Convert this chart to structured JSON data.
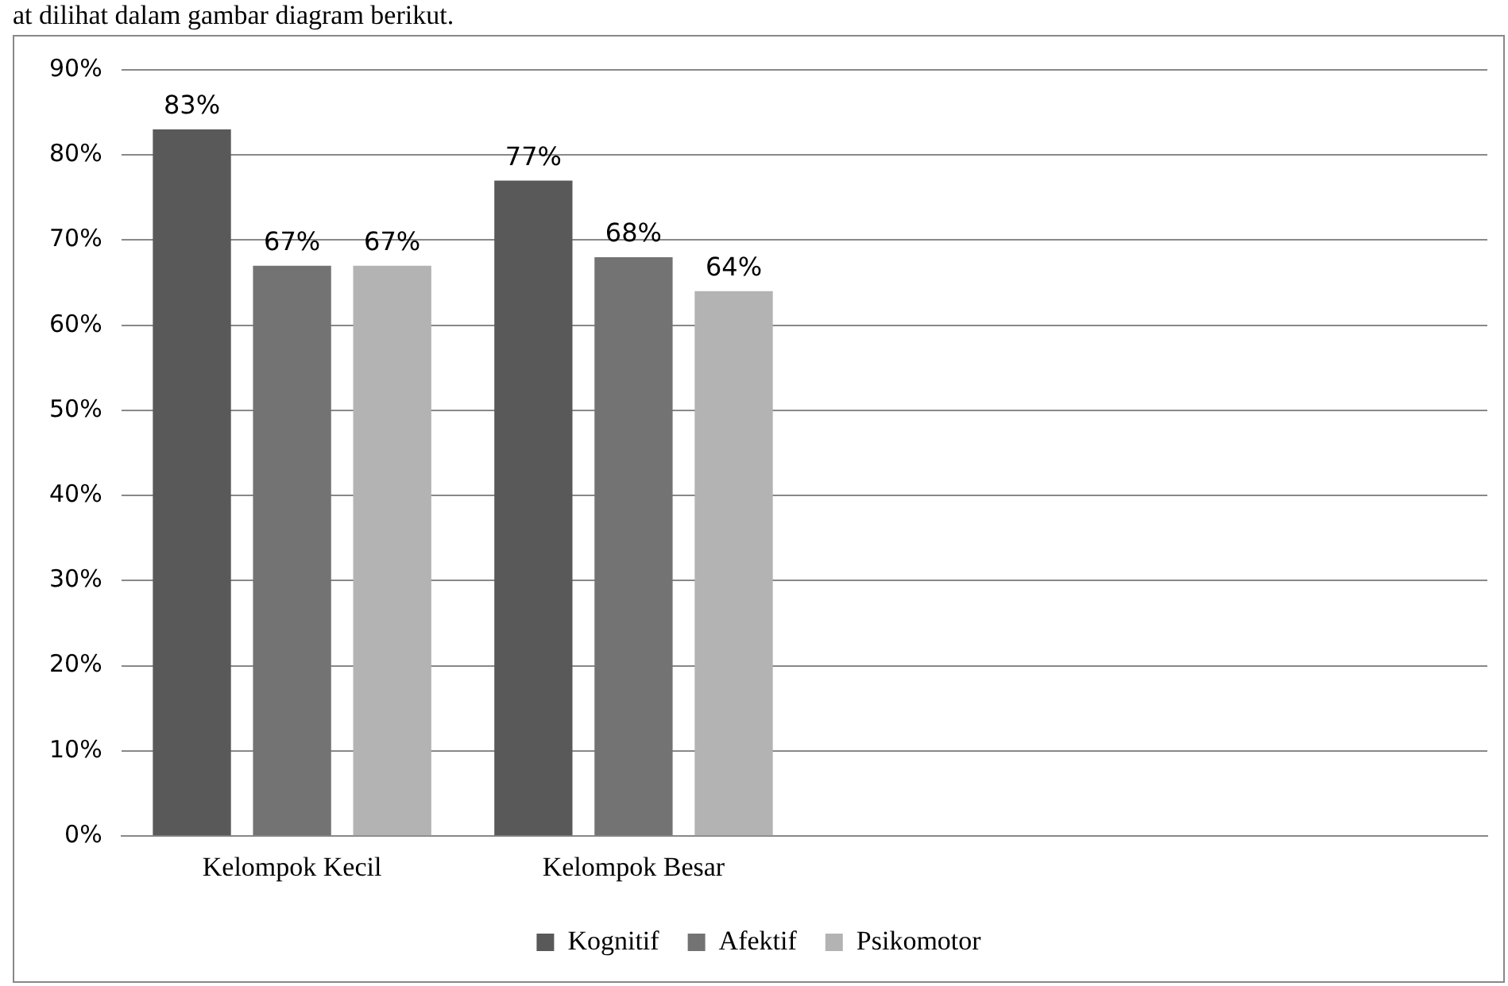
{
  "chart_data": {
    "type": "bar",
    "annotations": [
      "at dilihat dalam gambar diagram berikut."
    ],
    "categories": [
      "Kelompok Kecil",
      "Kelompok Besar",
      null,
      null
    ],
    "series": [
      {
        "name": "Kognitif",
        "color": "#595959",
        "values": [
          83,
          77,
          null,
          null
        ],
        "value_labels": [
          "83%",
          "77%",
          null,
          null
        ]
      },
      {
        "name": "Afektif",
        "color": "#737373",
        "values": [
          67,
          68,
          null,
          null
        ],
        "value_labels": [
          "67%",
          "68%",
          null,
          null
        ]
      },
      {
        "name": "Psikomotor",
        "color": "#b3b3b3",
        "values": [
          67,
          64,
          null,
          null
        ],
        "value_labels": [
          "67%",
          "64%",
          null,
          null
        ]
      }
    ],
    "ylim": [
      0,
      90
    ],
    "yticks": [
      {
        "value": 0,
        "label": "0%"
      },
      {
        "value": 10,
        "label": "10%"
      },
      {
        "value": 20,
        "label": "20%"
      },
      {
        "value": 30,
        "label": "30%"
      },
      {
        "value": 40,
        "label": "40%"
      },
      {
        "value": 50,
        "label": "50%"
      },
      {
        "value": 60,
        "label": "60%"
      },
      {
        "value": 70,
        "label": "70%"
      },
      {
        "value": 80,
        "label": "80%"
      },
      {
        "value": 90,
        "label": "90%"
      }
    ],
    "grid": "y",
    "legend": "bottom"
  }
}
